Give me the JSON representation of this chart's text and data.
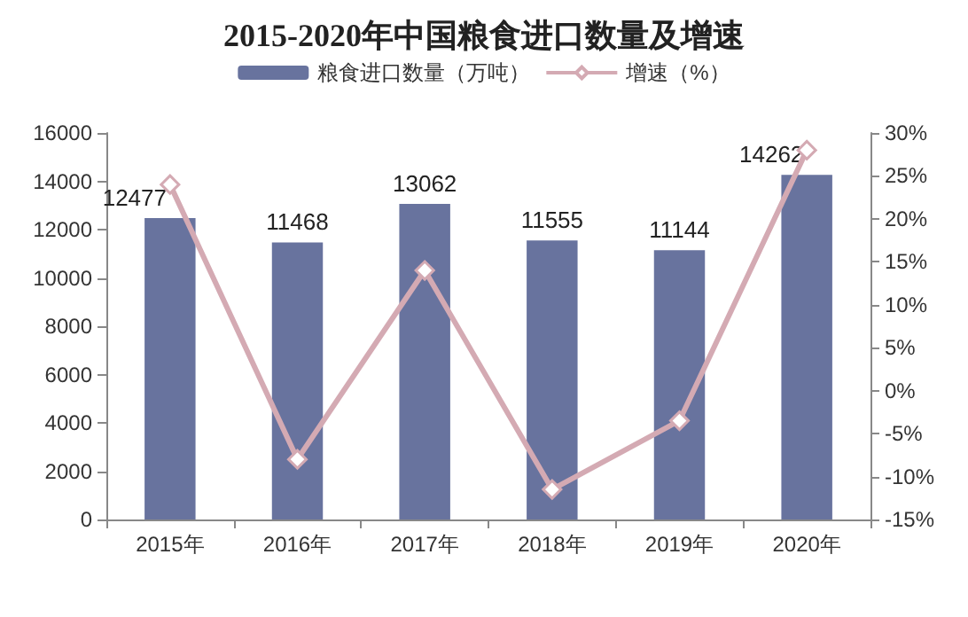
{
  "chart_data": {
    "type": "bar",
    "title": "2015-2020年中国粮食进口数量及增速",
    "categories": [
      "2015年",
      "2016年",
      "2017年",
      "2018年",
      "2019年",
      "2020年"
    ],
    "series": [
      {
        "name": "粮食进口数量（万吨）",
        "color": "#68739e",
        "values": [
          12477,
          11468,
          13062,
          11555,
          11144,
          14262
        ],
        "data_labels": true
      },
      {
        "name": "增速（%）",
        "type": "line",
        "axis": "y2",
        "color": "#d4aab3",
        "values": [
          24,
          -8,
          14,
          -11.5,
          -3.5,
          28
        ],
        "marker": "diamond"
      }
    ],
    "ylim": [
      0,
      16000
    ],
    "yticks": [
      0,
      2000,
      4000,
      6000,
      8000,
      10000,
      12000,
      14000,
      16000
    ],
    "y2lim": [
      -15,
      30
    ],
    "y2ticks": [
      {
        "value": -15,
        "label": "-15%"
      },
      {
        "value": -10,
        "label": "-10%"
      },
      {
        "value": -5,
        "label": "-5%"
      },
      {
        "value": 0,
        "label": "0%"
      },
      {
        "value": 5,
        "label": "5%"
      },
      {
        "value": 10,
        "label": "10%"
      },
      {
        "value": 15,
        "label": "15%"
      },
      {
        "value": 20,
        "label": "20%"
      },
      {
        "value": 25,
        "label": "25%"
      },
      {
        "value": 30,
        "label": "30%"
      }
    ],
    "legend": "top",
    "grid": false
  }
}
